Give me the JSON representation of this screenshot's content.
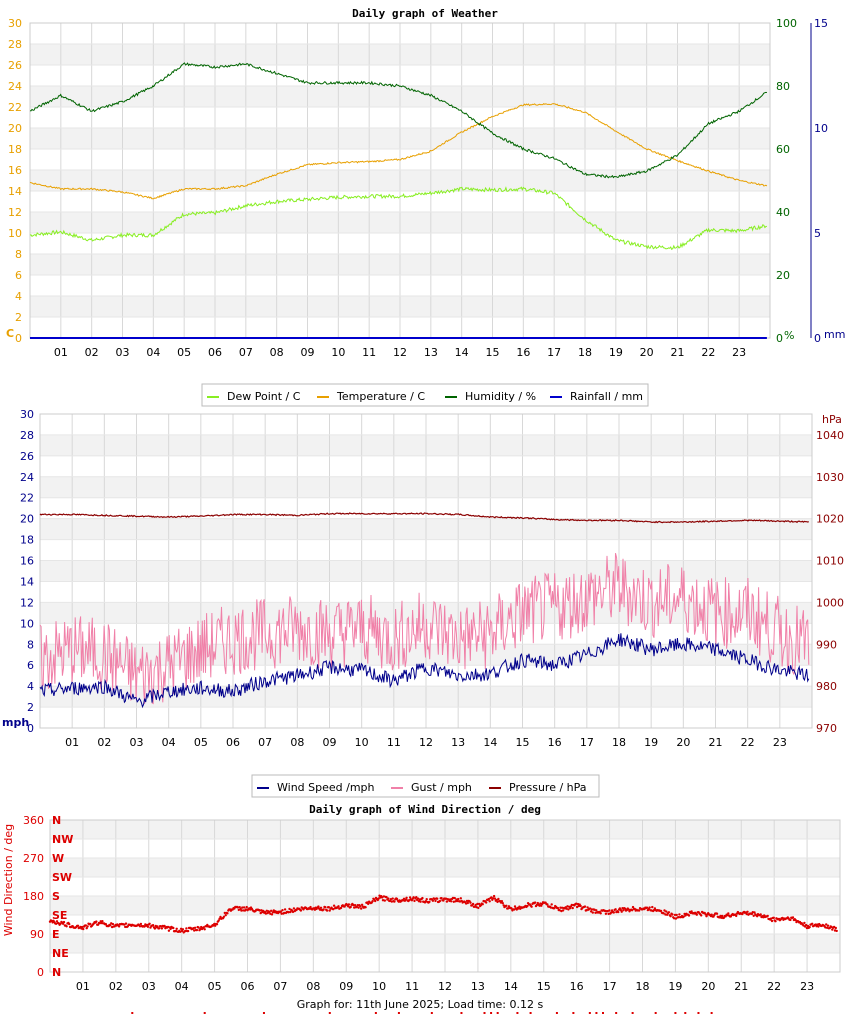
{
  "footer": "Graph for: 11th June 2025; Load time: 0.12 s",
  "hours": [
    "01",
    "02",
    "03",
    "04",
    "05",
    "06",
    "07",
    "08",
    "09",
    "10",
    "11",
    "12",
    "13",
    "14",
    "15",
    "16",
    "17",
    "18",
    "19",
    "20",
    "21",
    "22",
    "23"
  ],
  "chart_data": [
    {
      "type": "line",
      "title": "Daily graph of Weather",
      "grid": true,
      "legend_position": "bottom",
      "x_unit": "hour of day",
      "axes": {
        "left": {
          "label": "C",
          "range": [
            0,
            30
          ],
          "ticks": [
            0,
            2,
            4,
            6,
            8,
            10,
            12,
            14,
            16,
            18,
            20,
            22,
            24,
            26,
            28,
            30
          ],
          "color": "#e8a000"
        },
        "right": {
          "label": "%",
          "range": [
            0,
            100
          ],
          "ticks": [
            0,
            20,
            40,
            60,
            80,
            100
          ],
          "color": "#006400"
        },
        "right2": {
          "label": "mm",
          "range": [
            0,
            15
          ],
          "ticks": [
            0,
            5,
            10,
            15
          ],
          "color": "#00008b"
        }
      },
      "series": [
        {
          "name": "Dew Point / C",
          "axis": "left",
          "color": "#88ee22",
          "x": [
            0,
            1,
            2,
            3,
            4,
            5,
            6,
            7,
            8,
            9,
            10,
            11,
            12,
            13,
            14,
            15,
            16,
            17,
            18,
            19,
            20,
            21,
            22,
            23,
            23.9
          ],
          "y": [
            9.8,
            10.1,
            9.3,
            9.8,
            9.8,
            11.8,
            11.9,
            12.6,
            13.0,
            13.2,
            13.4,
            13.5,
            13.5,
            13.8,
            14.2,
            14.1,
            14.2,
            13.8,
            11.3,
            9.3,
            8.7,
            8.6,
            10.3,
            10.2,
            10.7
          ]
        },
        {
          "name": "Temperature / C",
          "axis": "left",
          "color": "#e8a000",
          "x": [
            0,
            1,
            2,
            3,
            4,
            5,
            6,
            7,
            8,
            9,
            10,
            11,
            12,
            13,
            14,
            15,
            16,
            17,
            18,
            19,
            20,
            21,
            22,
            23,
            23.9
          ],
          "y": [
            14.8,
            14.2,
            14.2,
            13.9,
            13.3,
            14.2,
            14.2,
            14.5,
            15.6,
            16.5,
            16.7,
            16.8,
            17.0,
            17.8,
            19.6,
            21.1,
            22.2,
            22.3,
            21.5,
            19.7,
            18.0,
            16.9,
            15.9,
            15.0,
            14.5
          ]
        },
        {
          "name": "Humidity / %",
          "axis": "right",
          "color": "#006400",
          "x": [
            0,
            1,
            2,
            3,
            4,
            5,
            6,
            7,
            8,
            9,
            10,
            11,
            12,
            13,
            14,
            15,
            16,
            17,
            18,
            19,
            20,
            21,
            22,
            23,
            23.9
          ],
          "y": [
            72,
            77,
            72,
            75,
            80,
            87,
            86,
            87,
            84,
            81,
            81,
            81,
            80,
            77,
            72,
            65,
            60,
            57,
            52,
            51,
            53,
            58,
            68,
            72,
            78
          ]
        },
        {
          "name": "Rainfall / mm",
          "axis": "right2",
          "color": "#0000cc",
          "x": [
            0,
            23.9
          ],
          "y": [
            0,
            0
          ]
        }
      ]
    },
    {
      "type": "line",
      "title": "",
      "grid": true,
      "legend_position": "bottom",
      "x_unit": "hour of day",
      "axes": {
        "left": {
          "label": "mph",
          "range": [
            0,
            30
          ],
          "ticks": [
            0,
            2,
            4,
            6,
            8,
            10,
            12,
            14,
            16,
            18,
            20,
            22,
            24,
            26,
            28,
            30
          ],
          "color": "#00008b"
        },
        "right": {
          "label": "hPa",
          "range": [
            970,
            1045
          ],
          "ticks": [
            970,
            980,
            990,
            1000,
            1010,
            1020,
            1030,
            1040
          ],
          "color": "#8b0000"
        }
      },
      "series": [
        {
          "name": "Wind Speed /mph",
          "axis": "left",
          "color": "#00008b",
          "x": [
            0,
            1,
            2,
            3,
            4,
            5,
            6,
            7,
            8,
            9,
            10,
            11,
            12,
            13,
            14,
            15,
            16,
            17,
            18,
            19,
            20,
            21,
            22,
            23,
            23.9
          ],
          "y": [
            3.5,
            3.8,
            4.0,
            2.5,
            3.5,
            3.8,
            3.5,
            4.5,
            5.0,
            5.8,
            5.5,
            4.5,
            5.8,
            5.0,
            5.2,
            6.5,
            6.0,
            7.0,
            8.5,
            7.5,
            8.0,
            7.5,
            6.5,
            5.5,
            5.0
          ]
        },
        {
          "name": "Gust / mph",
          "axis": "left",
          "color": "#f080a8",
          "x": [
            0,
            1,
            2,
            3,
            4,
            5,
            6,
            7,
            8,
            9,
            10,
            11,
            12,
            13,
            14,
            15,
            16,
            17,
            18,
            19,
            20,
            21,
            22,
            23,
            23.9
          ],
          "y": [
            6.5,
            7.5,
            7.0,
            5.0,
            6.0,
            7.5,
            8.5,
            9.0,
            9.5,
            9.0,
            9.5,
            8.5,
            10.0,
            8.5,
            9.0,
            11.0,
            11.5,
            12.5,
            13.5,
            12.0,
            12.5,
            11.0,
            11.0,
            9.0,
            8.0
          ]
        },
        {
          "name": "Pressure / hPa",
          "axis": "right",
          "color": "#8b0000",
          "x": [
            0,
            1,
            2,
            3,
            4,
            5,
            6,
            7,
            8,
            9,
            10,
            11,
            12,
            13,
            14,
            15,
            16,
            17,
            18,
            19,
            20,
            21,
            22,
            23,
            23.9
          ],
          "y": [
            1021,
            1021,
            1020.8,
            1020.6,
            1020.4,
            1020.6,
            1021,
            1021,
            1020.8,
            1021.2,
            1021.2,
            1021.2,
            1021.2,
            1021,
            1020.4,
            1020.2,
            1019.8,
            1019.6,
            1019.6,
            1019.2,
            1019.2,
            1019.4,
            1019.6,
            1019.4,
            1019.2
          ]
        }
      ]
    },
    {
      "type": "scatter",
      "title": "Daily graph of Wind Direction / deg",
      "grid": true,
      "x_unit": "hour of day",
      "axes": {
        "left": {
          "label": "Wind Direction / deg",
          "range": [
            0,
            360
          ],
          "ticks": [
            0,
            90,
            180,
            270,
            360
          ],
          "color": "#dd0000"
        },
        "compass": [
          "N",
          "NE",
          "E",
          "SE",
          "S",
          "SW",
          "W",
          "NW",
          "N"
        ]
      },
      "series": [
        {
          "name": "direction",
          "color": "#dd0000",
          "x": [
            0,
            0.5,
            1,
            1.5,
            2,
            2.5,
            3,
            3.5,
            4,
            4.5,
            5,
            5.5,
            6,
            6.5,
            7,
            7.5,
            8,
            8.5,
            9,
            9.5,
            10,
            10.5,
            11,
            11.5,
            12,
            12.5,
            13,
            13.5,
            14,
            14.5,
            15,
            15.5,
            16,
            16.5,
            17,
            17.5,
            18,
            18.5,
            19,
            19.5,
            20,
            20.5,
            21,
            21.5,
            22,
            22.5,
            23,
            23.5,
            23.9
          ],
          "y": [
            122,
            112,
            105,
            118,
            108,
            112,
            110,
            104,
            98,
            102,
            112,
            150,
            150,
            140,
            142,
            148,
            152,
            150,
            158,
            154,
            176,
            170,
            174,
            168,
            172,
            170,
            156,
            176,
            148,
            158,
            162,
            148,
            158,
            144,
            142,
            148,
            150,
            148,
            130,
            140,
            136,
            132,
            140,
            136,
            124,
            128,
            108,
            112,
            100
          ]
        }
      ],
      "stray_markers": [
        2.5,
        4.7,
        6.5,
        8.5,
        9.9,
        10.6,
        11.6,
        12.5,
        13.2,
        13.4,
        13.6,
        14.2,
        14.6,
        15.4,
        15.9,
        16.4,
        16.6,
        16.8,
        17.2,
        17.7,
        18.4,
        19,
        19.3,
        19.7,
        20.1
      ]
    }
  ],
  "legend1": {
    "items": [
      {
        "label": "Dew Point / C",
        "color": "#88ee22"
      },
      {
        "label": "Temperature / C",
        "color": "#e8a000"
      },
      {
        "label": "Humidity / %",
        "color": "#006400"
      },
      {
        "label": "Rainfall / mm",
        "color": "#0000cc"
      }
    ]
  },
  "legend2": {
    "items": [
      {
        "label": "Wind Speed /mph",
        "color": "#00008b"
      },
      {
        "label": "Gust / mph",
        "color": "#f080a8"
      },
      {
        "label": "Pressure / hPa",
        "color": "#8b0000"
      }
    ]
  }
}
